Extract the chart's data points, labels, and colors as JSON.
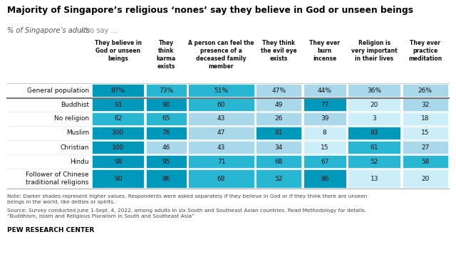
{
  "title": "Majority of Singapore’s religious ‘nones’ say they believe in God or unseen beings",
  "subtitle_italic": "% of Singapore’s adults",
  "subtitle_regular": " who say …",
  "col_headers": [
    "They believe in\nGod or unseen\nbeings",
    "They\nthink\nkarma\nexists",
    "A person can feel the\npresence of a\ndeceased family\nmember",
    "They think\nthe evil eye\nexists",
    "They ever\nburn\nincense",
    "Religion is\nvery important\nin their lives",
    "They ever\npractice\nmeditation"
  ],
  "row_labels": [
    "General population",
    "Buddhist",
    "No religion",
    "Muslim",
    "Christian",
    "Hindu",
    "Follower of Chinese\ntraditional religions"
  ],
  "values": [
    [
      87,
      73,
      51,
      47,
      44,
      36,
      26
    ],
    [
      91,
      90,
      60,
      49,
      77,
      20,
      32
    ],
    [
      62,
      65,
      43,
      26,
      39,
      3,
      18
    ],
    [
      100,
      76,
      47,
      81,
      8,
      83,
      15
    ],
    [
      100,
      46,
      43,
      34,
      15,
      61,
      27
    ],
    [
      98,
      95,
      71,
      68,
      67,
      52,
      58
    ],
    [
      90,
      86,
      68,
      52,
      86,
      13,
      20
    ]
  ],
  "display_values": [
    [
      "87%",
      "73%",
      "51%",
      "47%",
      "44%",
      "36%",
      "26%"
    ],
    [
      "91",
      "90",
      "60",
      "49",
      "77",
      "20",
      "32"
    ],
    [
      "62",
      "65",
      "43",
      "26",
      "39",
      "3",
      "18"
    ],
    [
      "100",
      "76",
      "47",
      "81",
      "8",
      "83",
      "15"
    ],
    [
      "100",
      "46",
      "43",
      "34",
      "15",
      "61",
      "27"
    ],
    [
      "98",
      "95",
      "71",
      "68",
      "67",
      "52",
      "58"
    ],
    [
      "90",
      "86",
      "68",
      "52",
      "86",
      "13",
      "20"
    ]
  ],
  "note_line1": "Note: Darker shades represent higher values. Respondents were asked separately if they believe in God or if they think there are unseen",
  "note_line2": "beings in the world, like deities or spirits.",
  "source_line1": "Source: Survey conducted June 1-Sept. 4, 2022, among adults in six South and Southeast Asian countries. Read Methodology for details.",
  "source_line2": "“Buddhism, Islam and Religious Pluralism in South and Southeast Asia”",
  "footer": "PEW RESEARCH CENTER",
  "color_light": "#a8d8ea",
  "color_mid": "#29b6d3",
  "color_dark": "#0099bb",
  "bg_color": "#ffffff",
  "threshold_high": 75,
  "threshold_mid": 50,
  "threshold_low": 25
}
